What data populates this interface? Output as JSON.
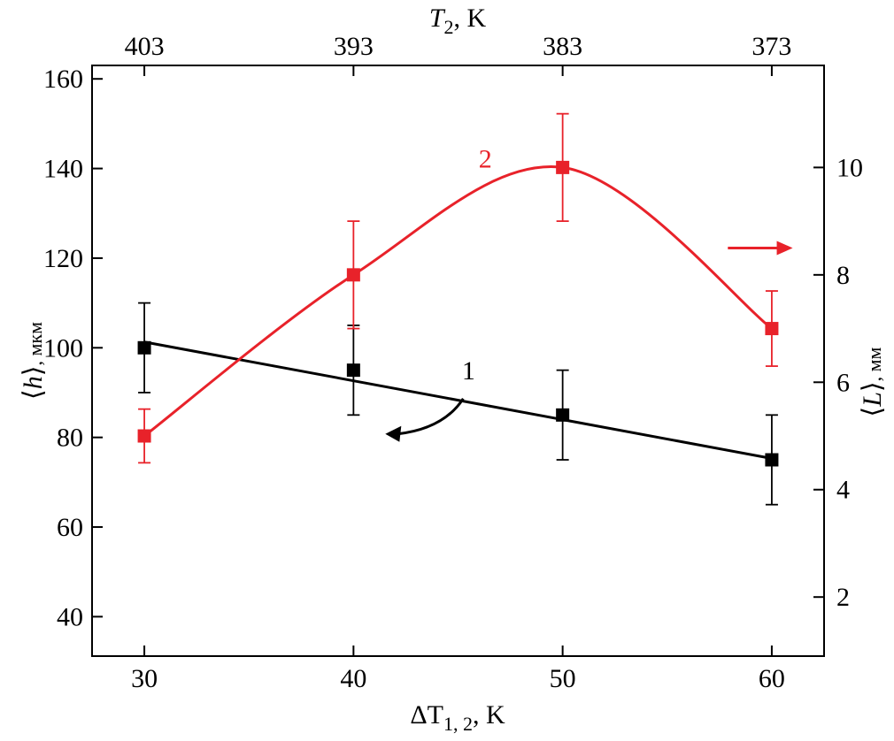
{
  "chart_data": {
    "type": "line",
    "x_bottom": {
      "label_symbol": "ΔT",
      "label_subscript": "1, 2",
      "label_unit": ", K",
      "range": [
        27.5,
        62.5
      ],
      "ticks": [
        30,
        40,
        50,
        60
      ]
    },
    "x_top": {
      "label_symbol": "T",
      "label_subscript": "2",
      "label_unit": ", K",
      "ticks": [
        {
          "at": 30,
          "label": "403"
        },
        {
          "at": 40,
          "label": "393"
        },
        {
          "at": 50,
          "label": "383"
        },
        {
          "at": 60,
          "label": "373"
        }
      ]
    },
    "y_left": {
      "label_open": "⟨",
      "label_symbol": "h",
      "label_close": "⟩",
      "label_unit": ", мкм",
      "range": [
        31.2,
        163
      ],
      "ticks": [
        40,
        60,
        80,
        100,
        120,
        140,
        160
      ]
    },
    "y_right": {
      "label_open": "⟨",
      "label_symbol": "L",
      "label_close": "⟩",
      "label_unit": ", мм",
      "range": [
        0.9,
        11.9
      ],
      "ticks": [
        2,
        4,
        6,
        8,
        10
      ]
    },
    "series": [
      {
        "name": "1",
        "axis": "left",
        "color": "#000000",
        "x": [
          30,
          40,
          50,
          60
        ],
        "y": [
          100,
          95,
          85,
          75
        ],
        "err": [
          10,
          10,
          10,
          10
        ],
        "fit": "linear",
        "fit_line": {
          "x": [
            30,
            60
          ],
          "y": [
            101.3,
            75.3
          ]
        },
        "label_at": {
          "x": 45.5,
          "y": 93
        },
        "arrow_direction": "left"
      },
      {
        "name": "2",
        "axis": "right",
        "color": "#e8222a",
        "x": [
          30,
          40,
          50,
          60
        ],
        "y": [
          5.0,
          8.0,
          10.0,
          7.0
        ],
        "err_up": [
          0.5,
          1.0,
          1.0,
          0.7
        ],
        "err_down": [
          0.5,
          1.0,
          1.0,
          0.7
        ],
        "fit": "smooth",
        "label_at": {
          "x": 46.3,
          "y": 10.0
        },
        "arrow_direction": "right"
      }
    ]
  }
}
